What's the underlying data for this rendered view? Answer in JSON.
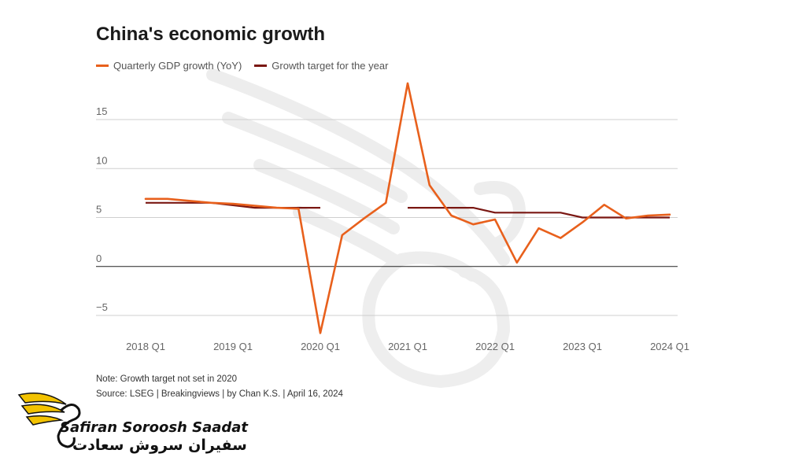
{
  "chart_data": {
    "type": "line",
    "title": "China's economic growth",
    "x_tick_labels": [
      "2018 Q1",
      "2019 Q1",
      "2020 Q1",
      "2021 Q1",
      "2022 Q1",
      "2023 Q1",
      "2024 Q1"
    ],
    "y_ticks": [
      15,
      10,
      5,
      0,
      -5
    ],
    "ylim": [
      -7,
      19
    ],
    "grid": "horizontal",
    "legend_position": "top-left",
    "series": [
      {
        "name": "Quarterly GDP growth (YoY)",
        "color": "#e8601c",
        "points": [
          [
            "2018 Q1",
            6.9
          ],
          [
            "2018 Q2",
            6.9
          ],
          [
            "2018 Q3",
            6.7
          ],
          [
            "2018 Q4",
            6.5
          ],
          [
            "2019 Q1",
            6.4
          ],
          [
            "2019 Q2",
            6.2
          ],
          [
            "2019 Q3",
            6.0
          ],
          [
            "2019 Q4",
            5.9
          ],
          [
            "2020 Q1",
            -6.8
          ],
          [
            "2020 Q2",
            3.2
          ],
          [
            "2020 Q3",
            4.9
          ],
          [
            "2020 Q4",
            6.5
          ],
          [
            "2021 Q1",
            18.7
          ],
          [
            "2021 Q2",
            8.3
          ],
          [
            "2021 Q3",
            5.2
          ],
          [
            "2021 Q4",
            4.3
          ],
          [
            "2022 Q1",
            4.8
          ],
          [
            "2022 Q2",
            0.4
          ],
          [
            "2022 Q3",
            3.9
          ],
          [
            "2022 Q4",
            2.9
          ],
          [
            "2023 Q1",
            4.5
          ],
          [
            "2023 Q2",
            6.3
          ],
          [
            "2023 Q3",
            4.9
          ],
          [
            "2023 Q4",
            5.2
          ],
          [
            "2024 Q1",
            5.3
          ]
        ]
      },
      {
        "name": "Growth target for the year",
        "color": "#7a1712",
        "segments": [
          [
            [
              "2018 Q1",
              6.5
            ],
            [
              "2018 Q4",
              6.5
            ],
            [
              "2019 Q1",
              6.25
            ],
            [
              "2019 Q2",
              6.0
            ],
            [
              "2019 Q4",
              6.0
            ],
            [
              "2020 Q1",
              6.0
            ]
          ],
          [
            [
              "2021 Q1",
              6.0
            ],
            [
              "2021 Q4",
              6.0
            ],
            [
              "2022 Q1",
              5.5
            ],
            [
              "2022 Q4",
              5.5
            ],
            [
              "2023 Q1",
              5.0
            ],
            [
              "2024 Q1",
              5.0
            ]
          ]
        ]
      }
    ]
  },
  "notes": {
    "note": "Note: Growth target not set in 2020",
    "source": "Source: LSEG | Breakingviews | by Chan K.S. | April 16, 2024"
  },
  "brand": {
    "name_en": "Safiran Soroosh Saadat",
    "name_fa": "سفیران سروش سعادت",
    "accent": "#f2c200"
  }
}
